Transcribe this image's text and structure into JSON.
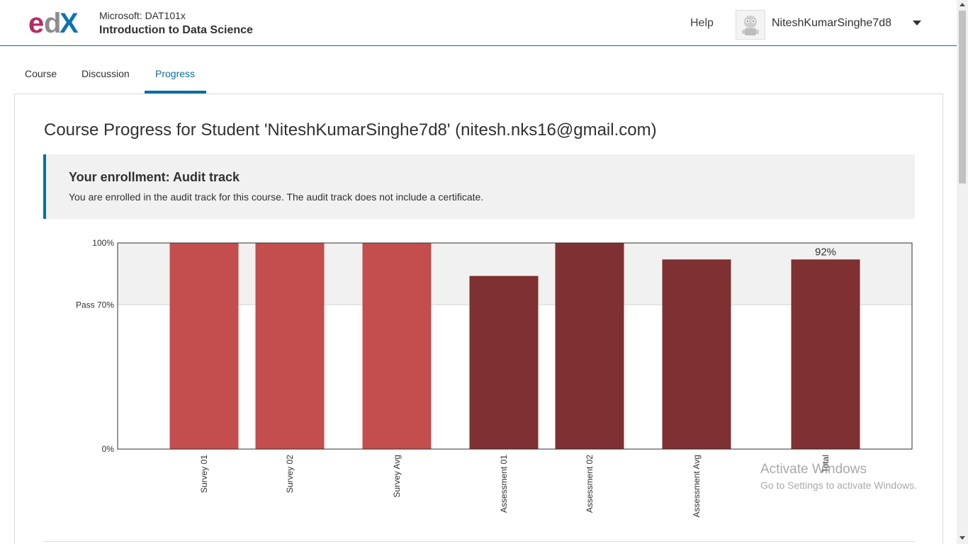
{
  "header": {
    "logo_alt": "edX",
    "course_org": "Microsoft: DAT101x",
    "course_name": "Introduction to Data Science",
    "help_label": "Help",
    "username": "NiteshKumarSinghe7d8"
  },
  "tabs": [
    {
      "label": "Course",
      "active": false
    },
    {
      "label": "Discussion",
      "active": false
    },
    {
      "label": "Progress",
      "active": true
    }
  ],
  "main": {
    "page_title": "Course Progress for Student 'NiteshKumarSinghe7d8' (nitesh.nks16@gmail.com)",
    "enrollment_title": "Your enrollment: Audit track",
    "enrollment_text": "You are enrolled in the audit track for this course. The audit track does not include a certificate."
  },
  "chart_data": {
    "type": "bar",
    "title": "",
    "xlabel": "",
    "ylabel": "",
    "ylim": [
      0,
      100
    ],
    "y_tick_labels": [
      {
        "value": 100,
        "label": "100%"
      },
      {
        "value": 70,
        "label": "Pass 70%"
      },
      {
        "value": 0,
        "label": "0%"
      }
    ],
    "categories": [
      "Survey 01",
      "Survey 02",
      "Survey Avg",
      "Assessment 01",
      "Assessment 02",
      "Assessment Avg",
      "Total"
    ],
    "values": [
      100,
      100,
      100,
      84,
      100,
      92,
      92
    ],
    "groups": [
      "survey",
      "survey",
      "survey",
      "assessment",
      "assessment",
      "assessment",
      "total"
    ],
    "data_labels": [
      {
        "category": "Total",
        "label": "92%"
      }
    ],
    "pass_threshold": 70,
    "colors": {
      "survey": "#c44d4d",
      "assessment": "#7f3032",
      "total": "#7f3032",
      "pass_band": "#f1f1f1",
      "axis": "#313131"
    }
  },
  "overlay": {
    "watermark_title": "Activate Windows",
    "watermark_text": "Go to Settings to activate Windows."
  }
}
